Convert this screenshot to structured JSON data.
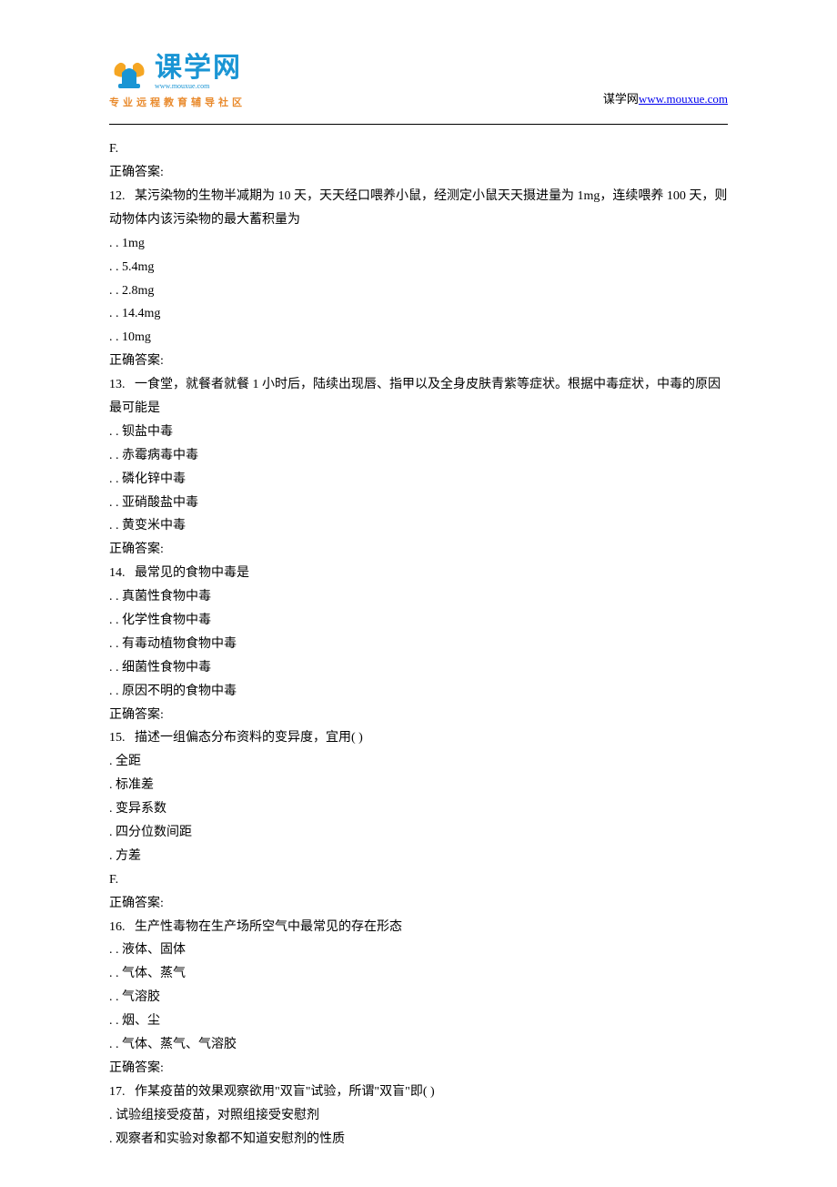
{
  "header": {
    "logo_text": "课学网",
    "logo_url_small": "www.mouxue.com",
    "logo_subtitle": "专业远程教育辅导社区",
    "right_text": "谋学网",
    "right_link": "www.mouxue.com"
  },
  "content": {
    "lines": [
      "F.",
      "正确答案:",
      "12.   某污染物的生物半减期为 10 天，天天经口喂养小鼠，经测定小鼠天天摄进量为 1mg，连续喂养 100 天，则动物体内该污染物的最大蓄积量为",
      ". . 1mg",
      ". . 5.4mg",
      ". . 2.8mg",
      ". . 14.4mg",
      ". . 10mg",
      "正确答案:",
      "13.   一食堂，就餐者就餐 1 小时后，陆续出现唇、指甲以及全身皮肤青紫等症状。根据中毒症状，中毒的原因最可能是",
      ". . 钡盐中毒",
      ". . 赤霉病毒中毒",
      ". . 磷化锌中毒",
      ". . 亚硝酸盐中毒",
      ". . 黄变米中毒",
      "正确答案:",
      "14.   最常见的食物中毒是",
      ". . 真菌性食物中毒",
      ". . 化学性食物中毒",
      ". . 有毒动植物食物中毒",
      ". . 细菌性食物中毒",
      ". . 原因不明的食物中毒",
      "正确答案:",
      "15.   描述一组偏态分布资料的变异度，宜用( )",
      ". 全距",
      ". 标准差",
      ". 变异系数",
      ". 四分位数间距",
      ". 方差",
      "F.",
      "正确答案:",
      "16.   生产性毒物在生产场所空气中最常见的存在形态",
      ". . 液体、固体",
      ". . 气体、蒸气",
      ". . 气溶胶",
      ". . 烟、尘",
      ". . 气体、蒸气、气溶胶",
      "正确答案:",
      "17.   作某疫苗的效果观察欲用\"双盲\"试验，所谓\"双盲\"即( )",
      ". 试验组接受疫苗，对照组接受安慰剂",
      ". 观察者和实验对象都不知道安慰剂的性质"
    ]
  }
}
